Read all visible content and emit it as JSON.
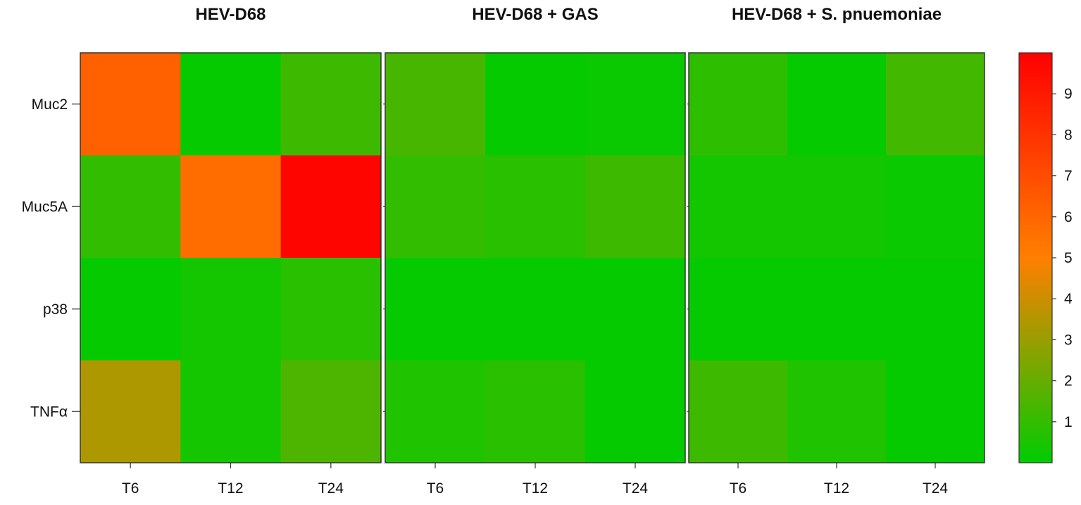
{
  "chart_data": {
    "type": "heatmap",
    "panels": [
      {
        "title": "HEV-D68",
        "rows": [
          "Muc2",
          "Muc5A",
          "p38",
          "TNFα"
        ],
        "columns": [
          "T6",
          "T12",
          "T24"
        ],
        "values": [
          [
            6.2,
            0.1,
            1.2
          ],
          [
            1.0,
            5.7,
            9.8
          ],
          [
            0.1,
            0.4,
            0.8
          ],
          [
            3.4,
            0.4,
            1.5
          ]
        ]
      },
      {
        "title": "HEV-D68 + GAS",
        "rows": [
          "Muc2",
          "Muc5A",
          "p38",
          "TNFα"
        ],
        "columns": [
          "T6",
          "T12",
          "T24"
        ],
        "values": [
          [
            1.4,
            0.1,
            0.2
          ],
          [
            1.0,
            0.8,
            1.2
          ],
          [
            0.1,
            0.1,
            0.1
          ],
          [
            0.6,
            0.8,
            0.1
          ]
        ]
      },
      {
        "title": "HEV-D68 + S. pnuemoniae",
        "rows": [
          "Muc2",
          "Muc5A",
          "p38",
          "TNFα"
        ],
        "columns": [
          "T6",
          "T12",
          "T24"
        ],
        "values": [
          [
            0.9,
            0.1,
            1.3
          ],
          [
            0.4,
            0.4,
            0.2
          ],
          [
            0.1,
            0.1,
            0.1
          ],
          [
            1.2,
            0.6,
            0.1
          ]
        ]
      }
    ],
    "colorbar": {
      "ticks": [
        1,
        2,
        3,
        4,
        5,
        6,
        7,
        8,
        9
      ],
      "range": [
        0,
        10
      ],
      "colors": [
        "#00cc00",
        "#ff7f00",
        "#ff0000"
      ]
    }
  }
}
